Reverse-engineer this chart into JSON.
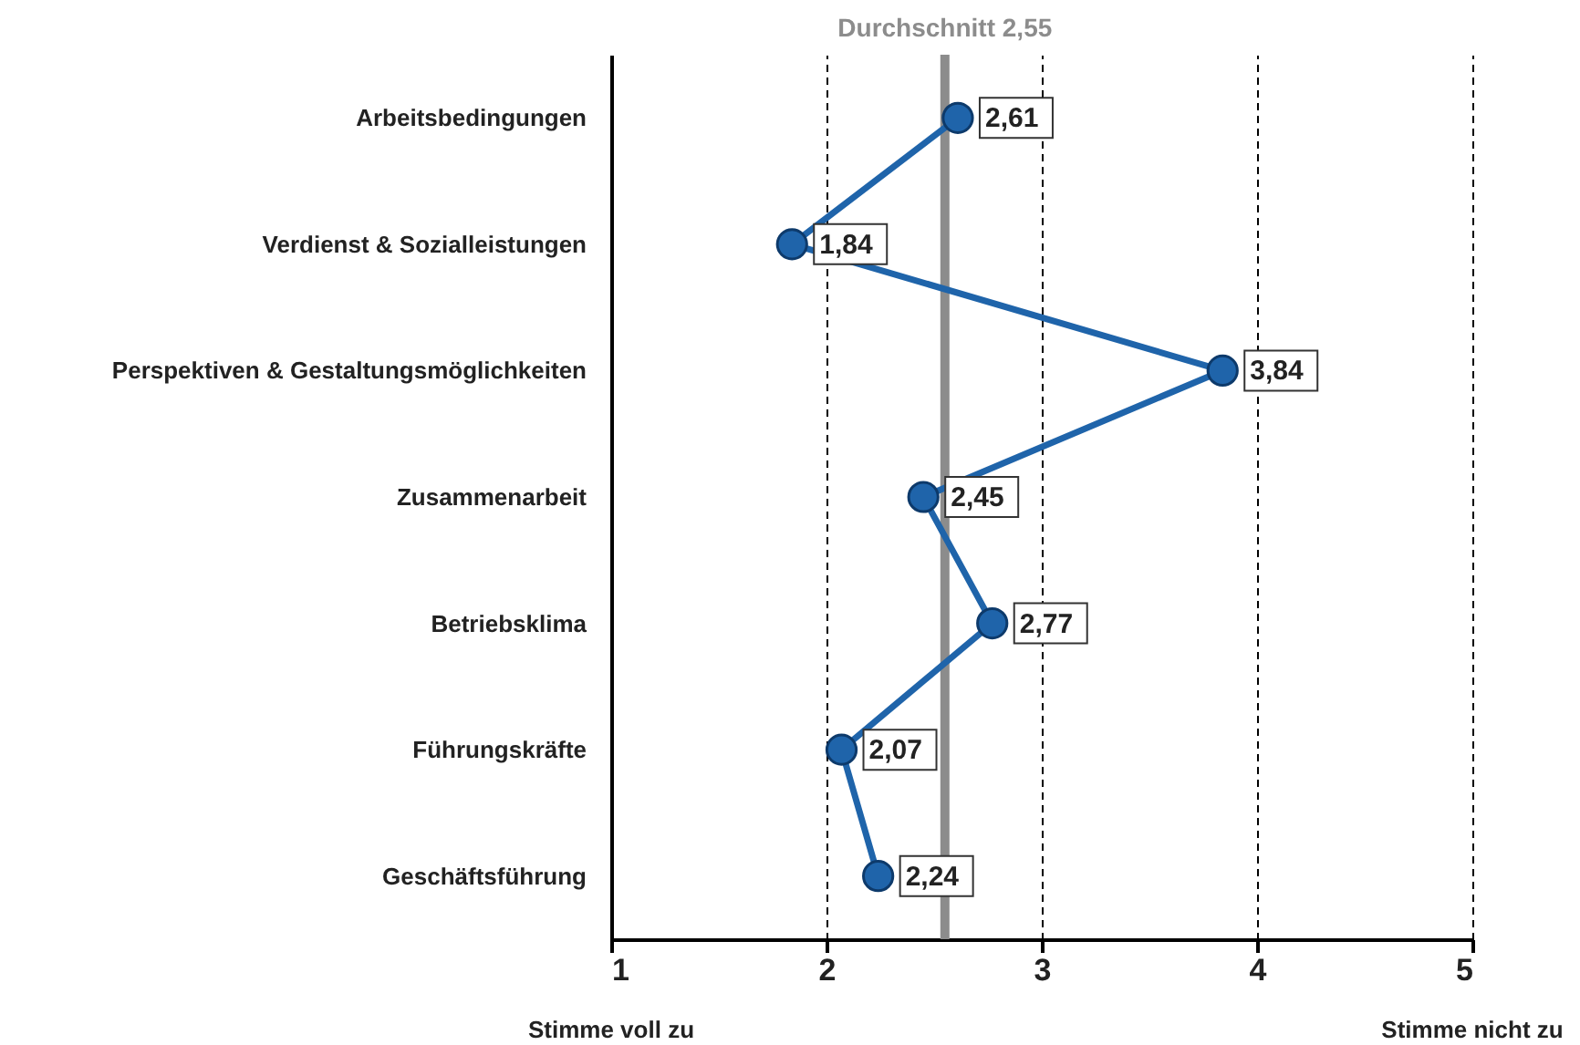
{
  "chart_data": {
    "type": "line",
    "orientation": "horizontal",
    "categories": [
      "Arbeitsbedingungen",
      "Verdienst & Sozialleistungen",
      "Perspektiven & Gestaltungsmöglichkeiten",
      "Zusammenarbeit",
      "Betriebsklima",
      "Führungskräfte",
      "Geschäftsführung"
    ],
    "values": [
      2.61,
      1.84,
      3.84,
      2.45,
      2.77,
      2.07,
      2.24
    ],
    "value_labels": [
      "2,61",
      "1,84",
      "3,84",
      "2,45",
      "2,77",
      "2,07",
      "2,24"
    ],
    "color": "#1f64aa",
    "xlim": [
      1,
      5
    ],
    "xticks": [
      1,
      2,
      3,
      4,
      5
    ],
    "grid": "x",
    "marker": "circle",
    "line_style": "solid",
    "ref_lines": [
      {
        "axis": "x",
        "value": 2.55,
        "label": "Durchschnitt 2,55",
        "color": "#8c8c8c"
      }
    ],
    "annotations": [
      "Stimme voll zu",
      "Stimme nicht zu"
    ]
  }
}
